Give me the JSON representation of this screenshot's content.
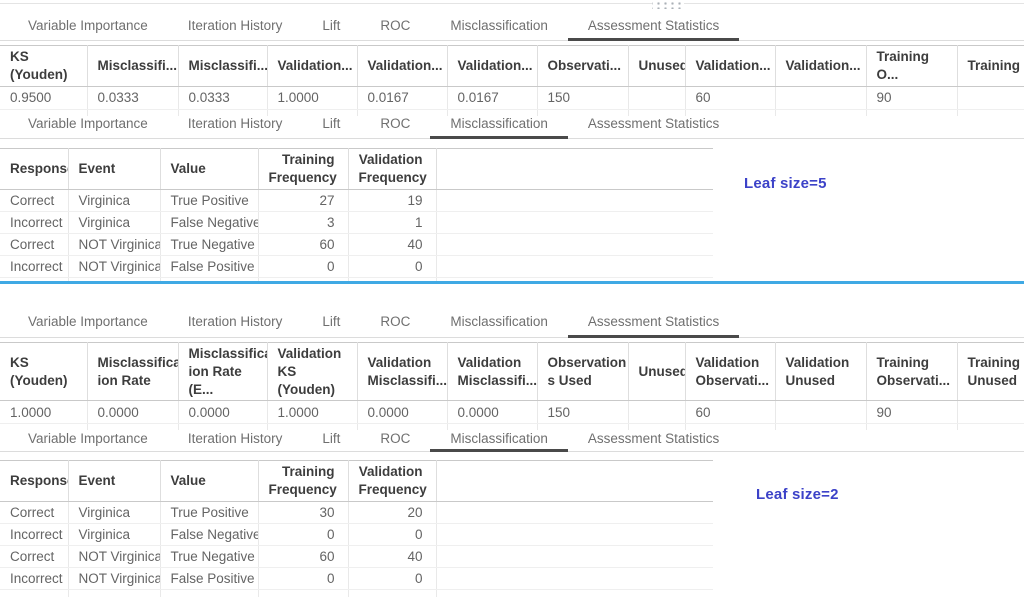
{
  "tabs": [
    "Variable Importance",
    "Iteration History",
    "Lift",
    "ROC",
    "Misclassification",
    "Assessment Statistics"
  ],
  "colors": {
    "divider_blue": "#3fa9e4",
    "leaf_label_blue": "#3c42c8",
    "active_tab_underline": "#4a4a4a"
  },
  "icons": {
    "drag_handle": "grip-dots"
  },
  "panel1": {
    "leaf_label": "Leaf size=5",
    "assessment": {
      "active_tab": "Assessment Statistics",
      "columns": [
        "KS (Youden)",
        "Misclassifi...",
        "Misclassifi...",
        "Validation...",
        "Validation...",
        "Validation...",
        "Observati...",
        "Unused",
        "Validation...",
        "Validation...",
        "Training O...",
        "Training U..."
      ],
      "row": [
        "0.9500",
        "0.0333",
        "0.0333",
        "1.0000",
        "0.0167",
        "0.0167",
        "150",
        "",
        "60",
        "",
        "90",
        ""
      ]
    },
    "misclassification": {
      "active_tab": "Misclassification",
      "columns": [
        "Response",
        "Event",
        "Value",
        "Training\nFrequency",
        "Validation\nFrequency"
      ],
      "rows": [
        [
          "Correct",
          "Virginica",
          "True Positive",
          "27",
          "19"
        ],
        [
          "Incorrect",
          "Virginica",
          "False Negative",
          "3",
          "1"
        ],
        [
          "Correct",
          "NOT Virginica",
          "True Negative",
          "60",
          "40"
        ],
        [
          "Incorrect",
          "NOT Virginica",
          "False Positive",
          "0",
          "0"
        ]
      ]
    }
  },
  "panel2": {
    "leaf_label": "Leaf size=2",
    "assessment": {
      "active_tab": "Assessment Statistics",
      "columns": [
        "KS (Youden)",
        "Misclassificat\nion Rate",
        "Misclassificat\nion Rate (E...",
        "Validation\nKS (Youden)",
        "Validation\nMisclassifi...",
        "Validation\nMisclassifi...",
        "Observation\ns Used",
        "Unused",
        "Validation\nObservati...",
        "Validation\nUnused",
        "Training\nObservati...",
        "Training\nUnused"
      ],
      "row": [
        "1.0000",
        "0.0000",
        "0.0000",
        "1.0000",
        "0.0000",
        "0.0000",
        "150",
        "",
        "60",
        "",
        "90",
        ""
      ]
    },
    "misclassification": {
      "active_tab": "Misclassification",
      "columns": [
        "Response",
        "Event",
        "Value",
        "Training\nFrequency",
        "Validation\nFrequency"
      ],
      "rows": [
        [
          "Correct",
          "Virginica",
          "True Positive",
          "30",
          "20"
        ],
        [
          "Incorrect",
          "Virginica",
          "False Negative",
          "0",
          "0"
        ],
        [
          "Correct",
          "NOT Virginica",
          "True Negative",
          "60",
          "40"
        ],
        [
          "Incorrect",
          "NOT Virginica",
          "False Positive",
          "0",
          "0"
        ]
      ]
    }
  }
}
